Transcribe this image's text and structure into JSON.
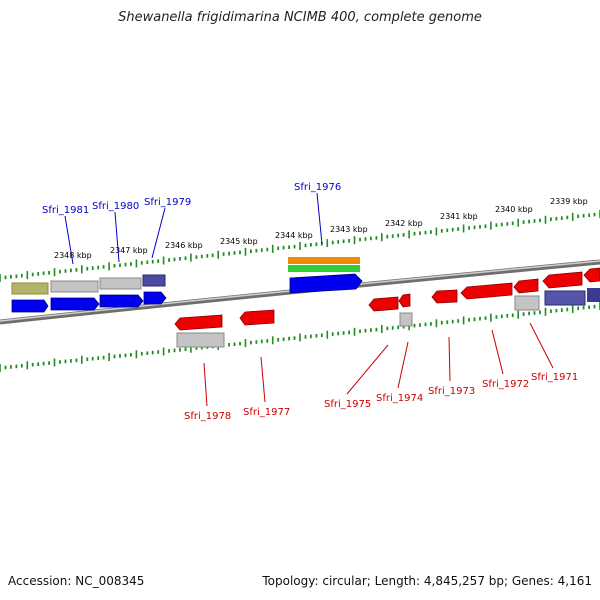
{
  "title": "Shewanella frigidimarina NCIMB 400, complete genome",
  "accession": "Accession: NC_008345",
  "summary": "Topology: circular; Length: 4,845,257 bp; Genes: 4,161",
  "ruler_labels": [
    "2348 kbp",
    "2347 kbp",
    "2346 kbp",
    "2345 kbp",
    "2344 kbp",
    "2343 kbp",
    "2342 kbp",
    "2341 kbp",
    "2340 kbp",
    "2339 kbp"
  ],
  "top_genes": [
    "Sfri_1981",
    "Sfri_1980",
    "Sfri_1979",
    "Sfri_1976"
  ],
  "bottom_genes": [
    "Sfri_1978",
    "Sfri_1977",
    "Sfri_1975",
    "Sfri_1974",
    "Sfri_1973",
    "Sfri_1972",
    "Sfri_1971"
  ],
  "colors": {
    "forward_label": "#0000cc",
    "reverse_label": "#cc0000",
    "forward_gene": "#0000ee",
    "reverse_gene": "#ee0000",
    "ruler": "#228b22",
    "backbone": "#7a7a7a"
  }
}
